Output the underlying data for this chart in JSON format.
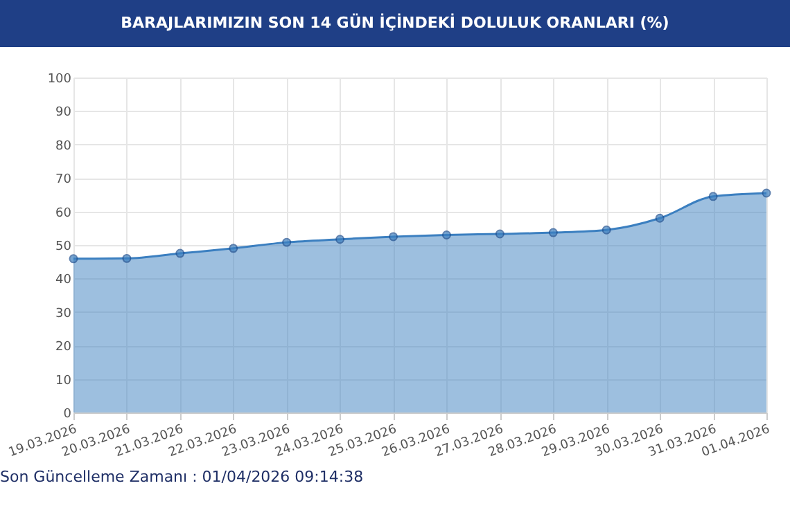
{
  "chart_data": {
    "type": "area",
    "title": "BARAJLARIMIZIN SON 14 GÜN İÇİNDEKİ DOLULUK ORANLARI (%)",
    "categories": [
      "19.03.2026",
      "20.03.2026",
      "21.03.2026",
      "22.03.2026",
      "23.03.2026",
      "24.03.2026",
      "25.03.2026",
      "26.03.2026",
      "27.03.2026",
      "28.03.2026",
      "29.03.2026",
      "30.03.2026",
      "31.03.2026",
      "01.04.2026"
    ],
    "series": [
      {
        "color": "#3b7fc0",
        "values": [
          45.9,
          46,
          47.5,
          49,
          50.8,
          51.7,
          52.5,
          53,
          53.3,
          53.7,
          54.5,
          58,
          64.5,
          65.5
        ]
      }
    ],
    "ylim": [
      0,
      100
    ],
    "yticks": [
      0,
      10,
      20,
      30,
      40,
      50,
      60,
      70,
      80,
      90,
      100
    ],
    "grid": true,
    "marker": "circle",
    "annotations": [
      "Son Güncelleme Zamanı : 01/04/2026 09:14:38"
    ]
  }
}
